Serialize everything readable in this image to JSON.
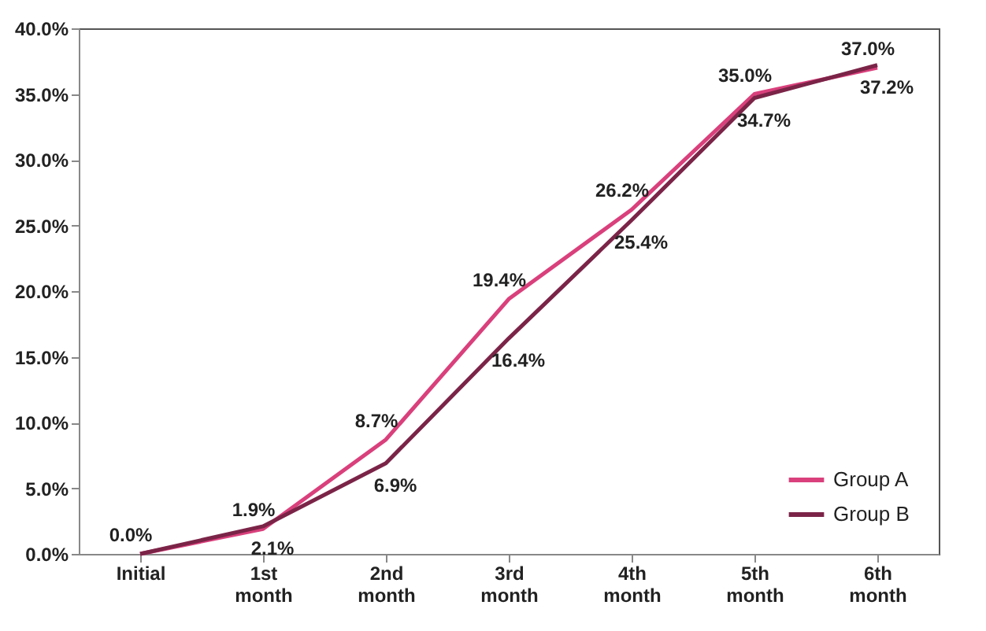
{
  "chart_data": {
    "type": "line",
    "categories": [
      "Initial",
      "1st month",
      "2nd month",
      "3rd month",
      "4th month",
      "5th month",
      "6th month"
    ],
    "series": [
      {
        "name": "Group A",
        "color": "#d9407c",
        "values": [
          0.0,
          1.9,
          8.7,
          19.4,
          26.2,
          35.0,
          37.0
        ],
        "value_labels": [
          "0.0%",
          "1.9%",
          "8.7%",
          "19.4%",
          "26.2%",
          "35.0%",
          "37.0%"
        ]
      },
      {
        "name": "Group B",
        "color": "#7b2448",
        "values": [
          0.0,
          2.1,
          6.9,
          16.4,
          25.4,
          34.7,
          37.2
        ],
        "value_labels": [
          null,
          "2.1%",
          "6.9%",
          "16.4%",
          "25.4%",
          "34.7%",
          "37.2%"
        ]
      }
    ],
    "ylim": [
      0,
      40
    ],
    "yticks": [
      {
        "value": 0,
        "label": "0.0%"
      },
      {
        "value": 5,
        "label": "5.0%"
      },
      {
        "value": 10,
        "label": "10.0%"
      },
      {
        "value": 15,
        "label": "15.0%"
      },
      {
        "value": 20,
        "label": "20.0%"
      },
      {
        "value": 25,
        "label": "25.0%"
      },
      {
        "value": 30,
        "label": "30.0%"
      },
      {
        "value": 35,
        "label": "35.0%"
      },
      {
        "value": 40,
        "label": "40.0%"
      }
    ],
    "grid": false,
    "legend": "bottom right",
    "marker": "none",
    "line_style": "solid"
  }
}
